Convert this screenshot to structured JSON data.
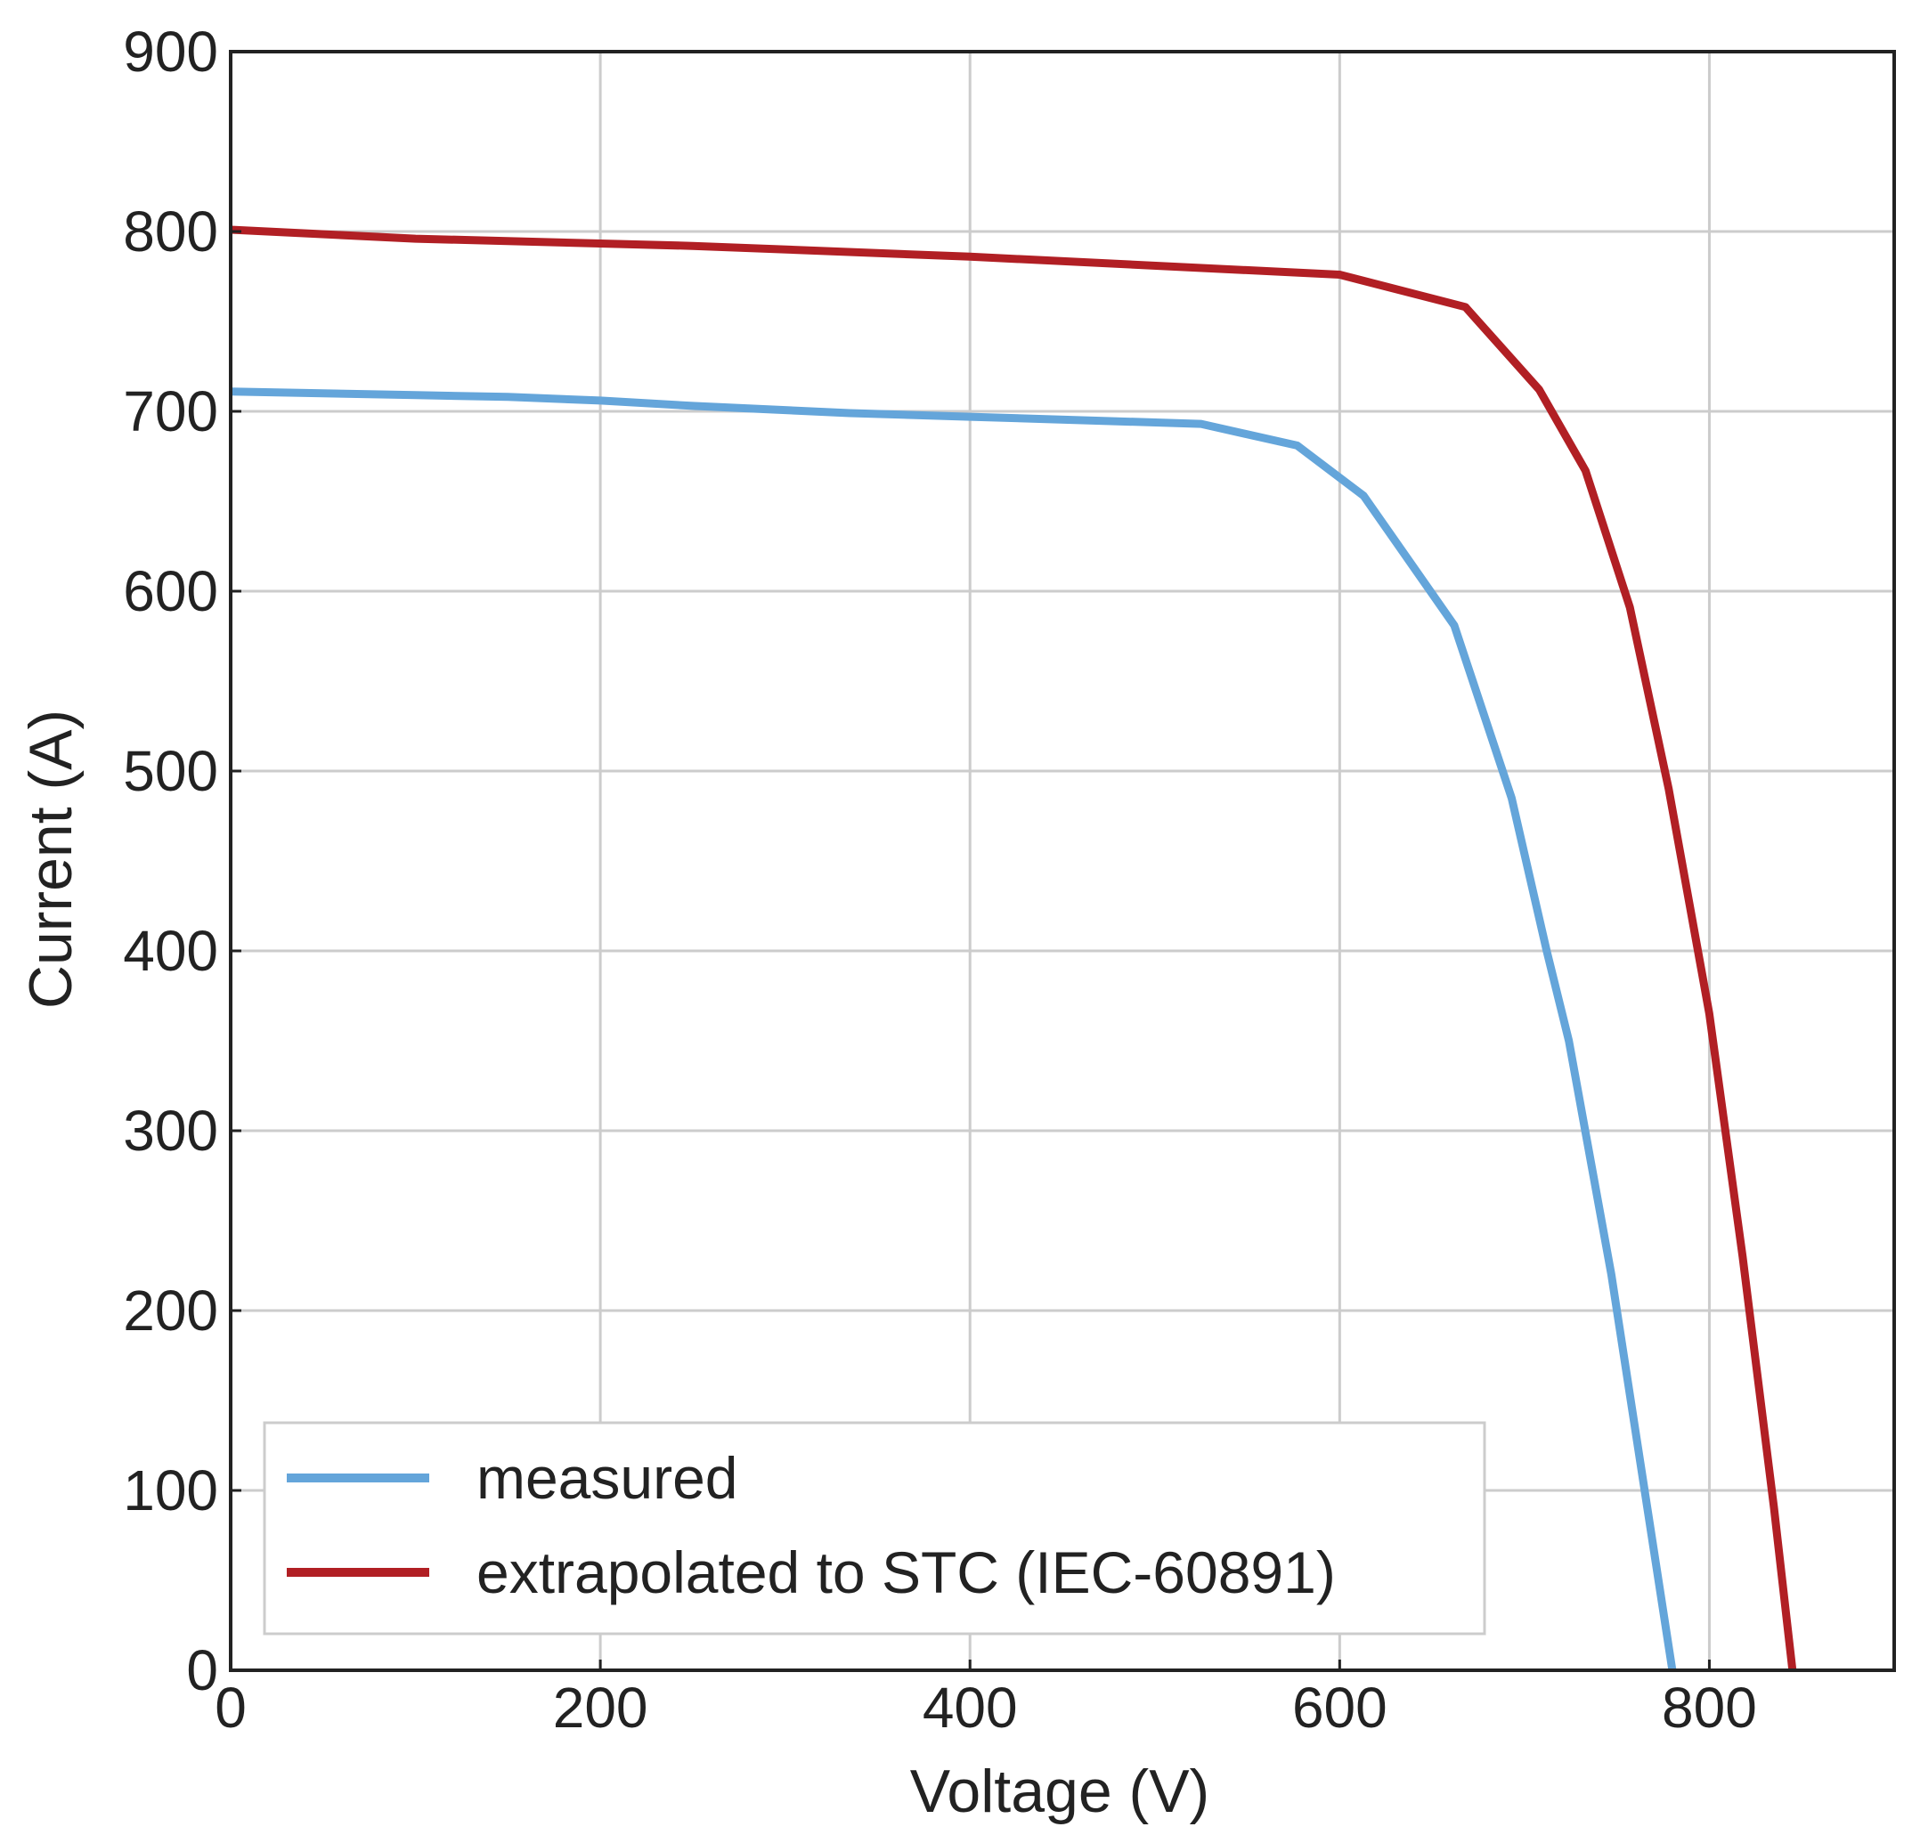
{
  "chart_data": {
    "type": "line",
    "title": "",
    "xlabel": "Voltage (V)",
    "ylabel": "Current (A)",
    "xlim": [
      0,
      900
    ],
    "ylim": [
      0,
      900
    ],
    "xticks": [
      0,
      200,
      400,
      600,
      800
    ],
    "yticks": [
      0,
      100,
      200,
      300,
      400,
      500,
      600,
      700,
      800,
      900
    ],
    "grid": true,
    "legend_position": "bottom-left",
    "series": [
      {
        "name": "measured",
        "color": "#64a5da",
        "x": [
          0,
          100,
          150,
          200,
          250,
          335,
          400,
          525,
          577,
          613,
          662,
          693,
          712,
          724,
          747,
          780
        ],
        "y": [
          711,
          709,
          708,
          706,
          703,
          699,
          697,
          693,
          681,
          653,
          581,
          485,
          400,
          350,
          220,
          0
        ]
      },
      {
        "name": "extrapolated to STC (IEC-60891)",
        "color": "#b11f24",
        "x": [
          0,
          100,
          250,
          400,
          600,
          668,
          708,
          733,
          757,
          778,
          800,
          818,
          835,
          845
        ],
        "y": [
          801,
          796,
          792,
          786,
          776,
          758,
          712,
          667,
          591,
          490,
          365,
          230,
          90,
          0
        ]
      }
    ]
  }
}
